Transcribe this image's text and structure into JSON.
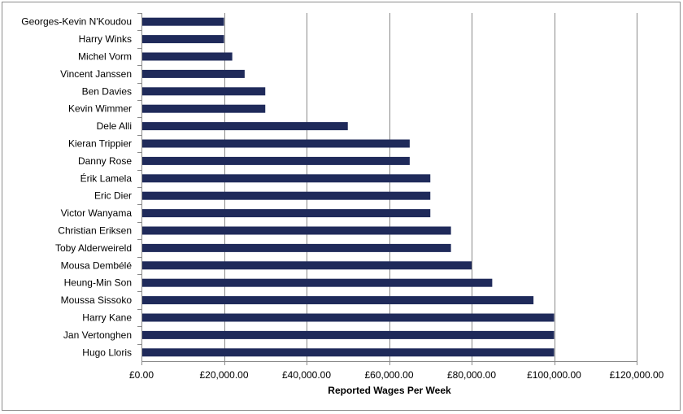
{
  "chart_data": {
    "type": "bar",
    "orientation": "horizontal",
    "title": "",
    "xlabel": "Reported Wages Per Week",
    "ylabel": "",
    "xlim": [
      0,
      120000
    ],
    "x_ticks": [
      {
        "value": 0,
        "label": "£0.00"
      },
      {
        "value": 20000,
        "label": "£20,000.00"
      },
      {
        "value": 40000,
        "label": "£40,000.00"
      },
      {
        "value": 60000,
        "label": "£60,000.00"
      },
      {
        "value": 80000,
        "label": "£80,000.00"
      },
      {
        "value": 100000,
        "label": "£100,000.00"
      },
      {
        "value": 120000,
        "label": "£120,000.00"
      }
    ],
    "grid": "vertical-major",
    "legend": "none",
    "bar_color": "#1F2A5A",
    "categories": [
      "Georges-Kevin N'Koudou",
      "Harry Winks",
      "Michel Vorm",
      "Vincent Janssen",
      "Ben Davies",
      "Kevin Wimmer",
      "Dele Alli",
      "Kieran Trippier",
      "Danny Rose",
      "Érik Lamela",
      "Eric Dier",
      "Victor Wanyama",
      "Christian Eriksen",
      "Toby Alderweireld",
      "Mousa Dembélé",
      "Heung-Min Son",
      "Moussa Sissoko",
      "Harry Kane",
      "Jan Vertonghen",
      "Hugo Lloris"
    ],
    "values": [
      20000,
      20000,
      22000,
      25000,
      30000,
      30000,
      50000,
      65000,
      65000,
      70000,
      70000,
      70000,
      75000,
      75000,
      80000,
      85000,
      95000,
      100000,
      100000,
      100000
    ]
  }
}
